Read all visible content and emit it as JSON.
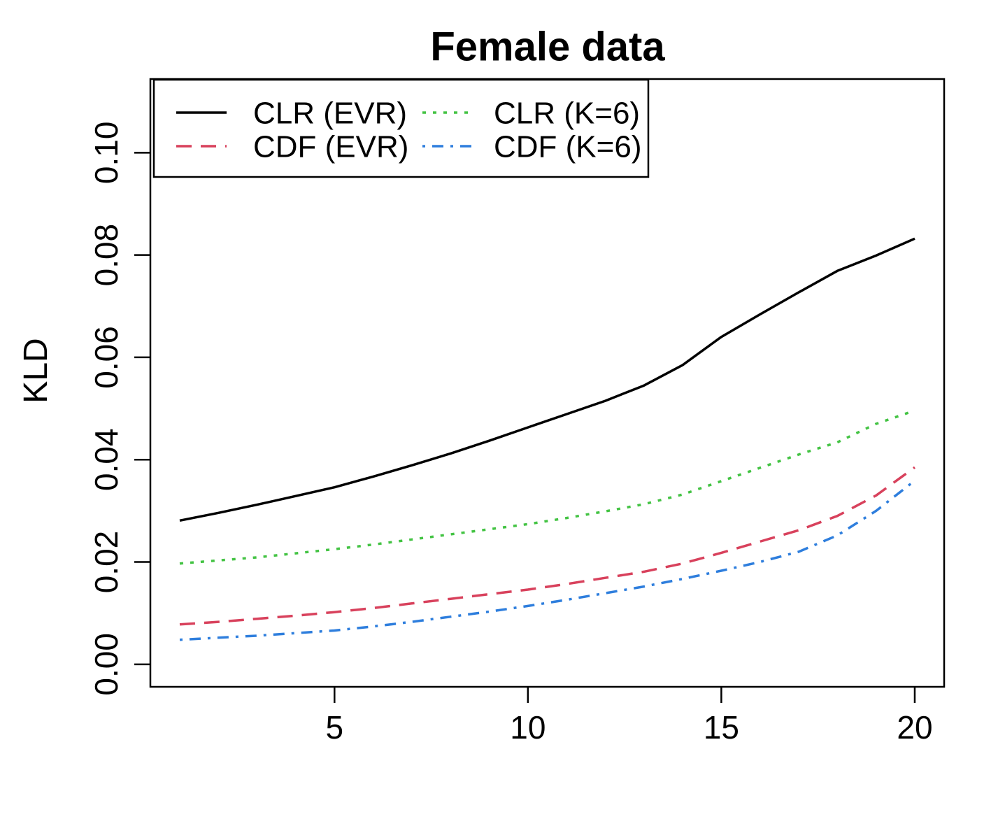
{
  "chart_data": {
    "type": "line",
    "title": "Female data",
    "xlabel": "",
    "ylabel": "KLD",
    "x": [
      1,
      2,
      3,
      4,
      5,
      6,
      7,
      8,
      9,
      10,
      11,
      12,
      13,
      14,
      15,
      16,
      17,
      18,
      19,
      20
    ],
    "series": [
      {
        "name": "CLR (EVR)",
        "color": "#000000",
        "linestyle": "solid",
        "values": [
          0.0281,
          0.0296,
          0.0312,
          0.0329,
          0.0346,
          0.0367,
          0.0389,
          0.0412,
          0.0437,
          0.0463,
          0.0489,
          0.0515,
          0.0545,
          0.0585,
          0.064,
          0.0684,
          0.0727,
          0.0769,
          0.0799,
          0.0832
        ]
      },
      {
        "name": "CDF (EVR)",
        "color": "#D8415C",
        "linestyle": "dashed",
        "values": [
          0.0078,
          0.0083,
          0.0089,
          0.0095,
          0.0102,
          0.011,
          0.0119,
          0.0128,
          0.0137,
          0.0146,
          0.0157,
          0.0169,
          0.0181,
          0.0197,
          0.0218,
          0.024,
          0.0262,
          0.029,
          0.033,
          0.0385
        ]
      },
      {
        "name": "CLR (K=6)",
        "color": "#43C343",
        "linestyle": "dotted",
        "values": [
          0.0197,
          0.0203,
          0.0209,
          0.0217,
          0.0225,
          0.0234,
          0.0244,
          0.0254,
          0.0264,
          0.0274,
          0.0286,
          0.0299,
          0.0313,
          0.0332,
          0.0358,
          0.0384,
          0.041,
          0.0434,
          0.047,
          0.0496
        ]
      },
      {
        "name": "CDF (K=6)",
        "color": "#2E7EDD",
        "linestyle": "dotdash",
        "values": [
          0.0048,
          0.0052,
          0.0056,
          0.0061,
          0.0066,
          0.0074,
          0.0083,
          0.0093,
          0.0103,
          0.0114,
          0.0126,
          0.0139,
          0.0152,
          0.0167,
          0.0183,
          0.02,
          0.022,
          0.0252,
          0.03,
          0.0359
        ]
      }
    ],
    "x_ticks": {
      "values": [
        5,
        10,
        15,
        20
      ],
      "labels": [
        "5",
        "10",
        "15",
        "20"
      ]
    },
    "y_ticks": {
      "values": [
        0.0,
        0.02,
        0.04,
        0.06,
        0.08,
        0.1
      ],
      "labels": [
        "0.00",
        "0.02",
        "0.04",
        "0.06",
        "0.08",
        "0.10"
      ]
    },
    "xlim": [
      0.24,
      20.76
    ],
    "ylim": [
      -0.0044,
      0.1144
    ],
    "ylim_nominal": [
      0,
      0.11
    ],
    "grid": "off",
    "legend": {
      "position": "topleft",
      "ncol": 2,
      "entries": [
        "CLR (EVR)",
        "CDF (EVR)",
        "CLR (K=6)",
        "CDF (K=6)"
      ]
    }
  }
}
